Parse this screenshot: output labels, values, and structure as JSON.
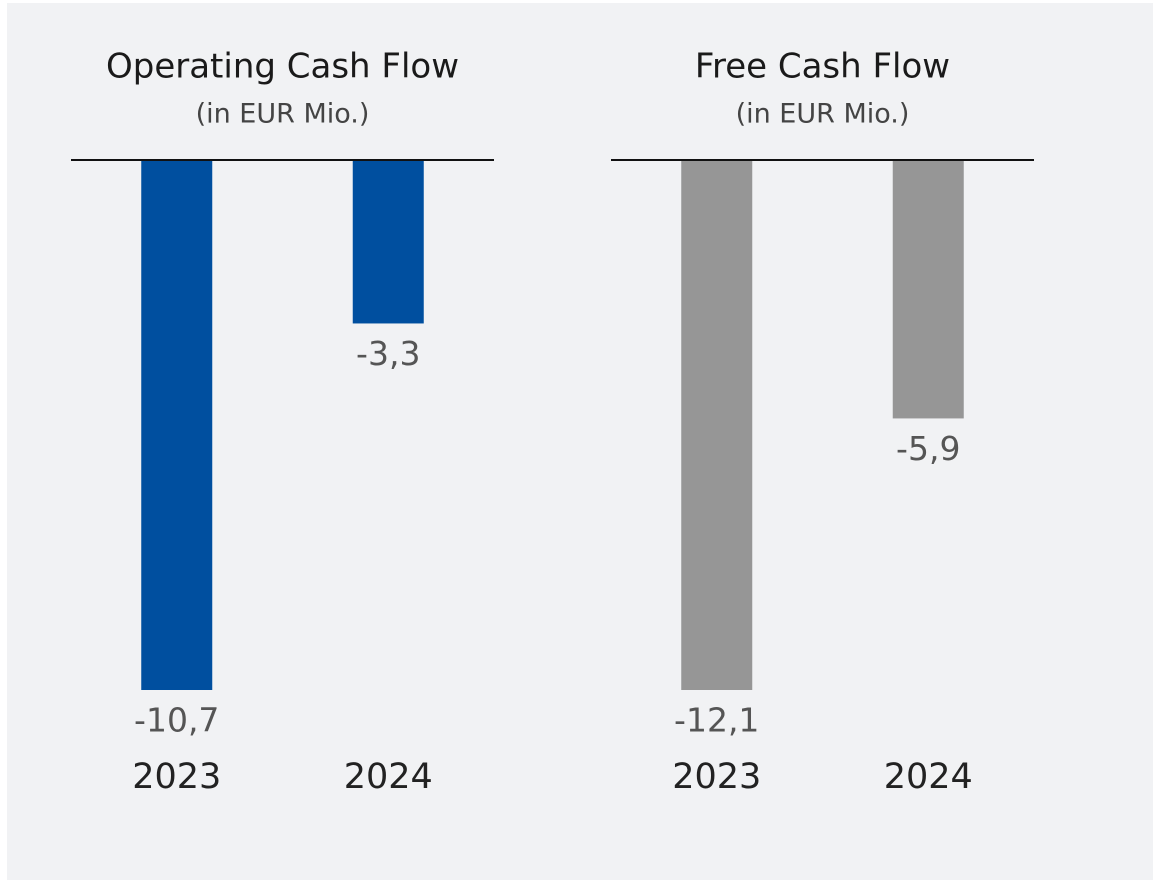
{
  "chart_data": [
    {
      "type": "bar",
      "title": "Operating Cash Flow",
      "subtitle": "(in EUR Mio.)",
      "categories": [
        "2023",
        "2024"
      ],
      "values": [
        -10.7,
        -3.3
      ],
      "value_labels": [
        "-10,7",
        "-3,3"
      ],
      "color": "#004f9f",
      "ylim": [
        -10.7,
        0
      ]
    },
    {
      "type": "bar",
      "title": "Free Cash Flow",
      "subtitle": "(in EUR Mio.)",
      "categories": [
        "2023",
        "2024"
      ],
      "values": [
        -12.1,
        -5.9
      ],
      "value_labels": [
        "-12,1",
        "-5,9"
      ],
      "color": "#969696",
      "ylim": [
        -12.1,
        0
      ]
    }
  ]
}
